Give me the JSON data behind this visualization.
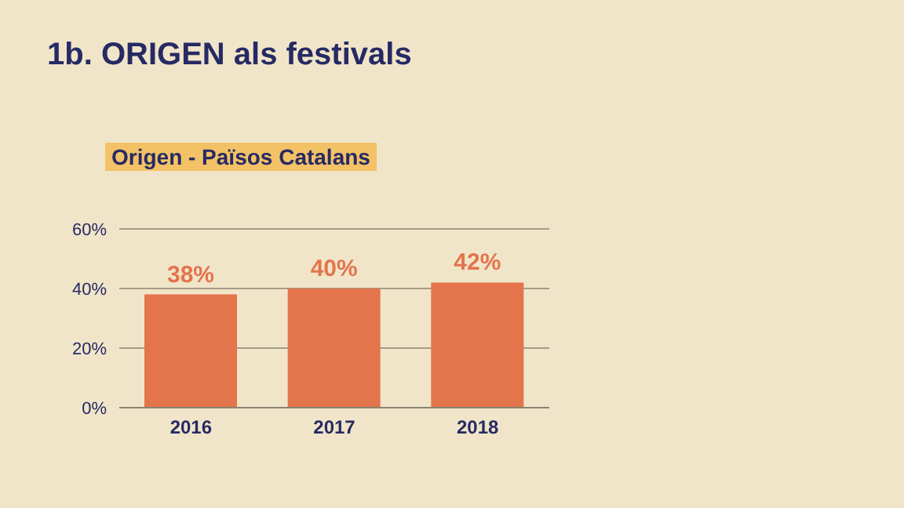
{
  "chart_data": {
    "type": "bar",
    "title": "1b. ORIGEN als festivals",
    "subtitle": "Origen - Països Catalans",
    "categories": [
      "2016",
      "2017",
      "2018"
    ],
    "values": [
      38,
      40,
      42
    ],
    "color": "#e3744c",
    "value_labels": [
      "38%",
      "40%",
      "42%"
    ],
    "ylim": [
      0,
      60
    ],
    "yticks": [
      {
        "value": 0,
        "label": "0%"
      },
      {
        "value": 20,
        "label": "20%"
      },
      {
        "value": 40,
        "label": "40%"
      },
      {
        "value": 60,
        "label": "60%"
      }
    ],
    "grid": "y"
  }
}
